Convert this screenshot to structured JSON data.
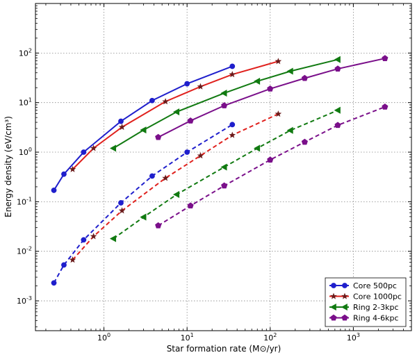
{
  "chart_data": {
    "type": "line",
    "xscale": "log",
    "yscale": "log",
    "xlim": [
      0.15,
      5000
    ],
    "ylim": [
      0.00025,
      1000
    ],
    "grid": true,
    "legend_position": "bottom-right",
    "xlabel": "Star formation rate (M⊙/yr)",
    "ylabel": "Energy density (eV/cm³)",
    "xticks": [
      {
        "value": 1,
        "base": "10",
        "exp": "0"
      },
      {
        "value": 10,
        "base": "10",
        "exp": "1"
      },
      {
        "value": 100,
        "base": "10",
        "exp": "2"
      },
      {
        "value": 1000,
        "base": "10",
        "exp": "3"
      }
    ],
    "yticks": [
      {
        "value": 0.001,
        "base": "10",
        "exp": "-3"
      },
      {
        "value": 0.01,
        "base": "10",
        "exp": "-2"
      },
      {
        "value": 0.1,
        "base": "10",
        "exp": "-1"
      },
      {
        "value": 1,
        "base": "10",
        "exp": "0"
      },
      {
        "value": 10,
        "base": "10",
        "exp": "1"
      },
      {
        "value": 100,
        "base": "10",
        "exp": "2"
      }
    ],
    "series": [
      {
        "name": "Core 500pc",
        "color": "#1f1fcc",
        "marker": "circle",
        "x": [
          0.25,
          0.33,
          0.57,
          1.6,
          3.8,
          10,
          35
        ],
        "solid": [
          0.17,
          0.36,
          1.0,
          4.2,
          11,
          24,
          54
        ],
        "dashed": [
          0.0023,
          0.0053,
          0.017,
          0.095,
          0.33,
          1.0,
          3.6
        ]
      },
      {
        "name": "Core 1000pc",
        "color": "#e0211d",
        "marker": "star",
        "x": [
          0.42,
          0.75,
          1.65,
          5.5,
          14.5,
          35,
          125
        ],
        "solid": [
          0.45,
          1.2,
          3.2,
          10.5,
          21,
          37,
          68
        ],
        "dashed": [
          0.0067,
          0.02,
          0.066,
          0.3,
          0.85,
          2.2,
          5.9
        ]
      },
      {
        "name": "Ring 2-3kpc",
        "color": "#117a11",
        "marker": "triangle-left",
        "x": [
          1.3,
          3,
          7.5,
          28,
          70,
          175,
          650
        ],
        "solid": [
          1.2,
          2.8,
          6.5,
          15.5,
          27,
          43,
          74
        ],
        "dashed": [
          0.018,
          0.049,
          0.14,
          0.5,
          1.2,
          2.75,
          7.0
        ]
      },
      {
        "name": "Ring 4-6kpc",
        "color": "#7a0f8a",
        "marker": "pentagon",
        "x": [
          4.5,
          11,
          28,
          100,
          260,
          650,
          2400
        ],
        "solid": [
          2.0,
          4.3,
          8.7,
          19,
          31,
          48,
          78
        ],
        "dashed": [
          0.033,
          0.083,
          0.21,
          0.7,
          1.6,
          3.5,
          8.2
        ]
      }
    ]
  }
}
